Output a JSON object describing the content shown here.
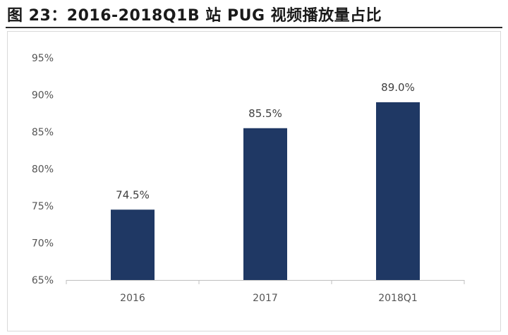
{
  "title": "图 23：2016-2018Q1B 站 PUG 视频播放量占比",
  "chart_data": {
    "type": "bar",
    "title": "",
    "xlabel": "",
    "ylabel": "",
    "categories": [
      "2016",
      "2017",
      "2018Q1"
    ],
    "values": [
      74.5,
      85.5,
      89.0
    ],
    "data_labels": [
      "74.5%",
      "85.5%",
      "89.0%"
    ],
    "ylim": [
      65,
      95
    ],
    "yticks": [
      65,
      70,
      75,
      80,
      85,
      90,
      95
    ],
    "ytick_labels": [
      "65%",
      "70%",
      "75%",
      "80%",
      "85%",
      "90%",
      "95%"
    ],
    "bar_color": "#1f3864",
    "grid": false,
    "legend": "none"
  }
}
